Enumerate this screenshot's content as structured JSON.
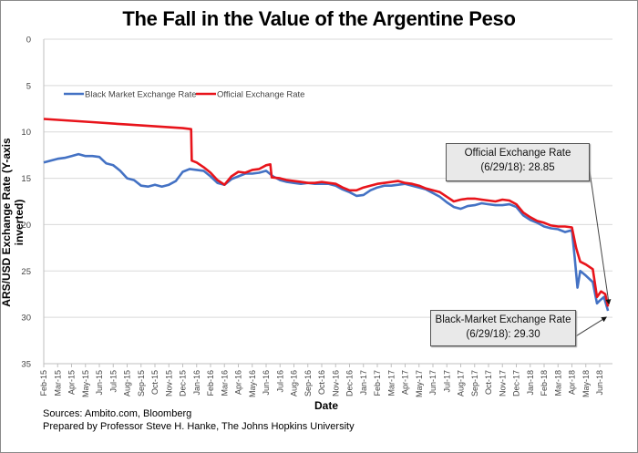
{
  "chart_data": {
    "type": "line",
    "title": "The Fall in the Value of the Argentine Peso",
    "xlabel": "Date",
    "ylabel": "ARS/USD Exchange  Rate (Y-axis inverted)",
    "ylim": [
      0,
      35
    ],
    "y_inverted": true,
    "yticks": [
      0,
      5,
      10,
      15,
      20,
      25,
      30,
      35
    ],
    "grid": true,
    "legend_position": "top-left",
    "x_ticks": [
      "Feb-15",
      "Mar-15",
      "Apr-15",
      "May-15",
      "Jun-15",
      "Jul-15",
      "Aug-15",
      "Sep-15",
      "Oct-15",
      "Nov-15",
      "Dec-15",
      "Jan-16",
      "Feb-16",
      "Mar-16",
      "Apr-16",
      "May-16",
      "Jun-16",
      "Jul-16",
      "Aug-16",
      "Sep-16",
      "Oct-16",
      "Nov-16",
      "Dec-16",
      "Jan-17",
      "Feb-17",
      "Mar-17",
      "Apr-17",
      "May-17",
      "Jun-17",
      "Jul-17",
      "Aug-17",
      "Sep-17",
      "Oct-17",
      "Nov-17",
      "Dec-17",
      "Jan-18",
      "Feb-18",
      "Mar-18",
      "Apr-18",
      "May-18",
      "Jun-18"
    ],
    "series": [
      {
        "name": "Black Market Exchange Rate",
        "color": "#4472c4",
        "points": [
          [
            0,
            13.3
          ],
          [
            0.5,
            13.1
          ],
          [
            1,
            12.9
          ],
          [
            1.5,
            12.8
          ],
          [
            2,
            12.6
          ],
          [
            2.5,
            12.4
          ],
          [
            3,
            12.6
          ],
          [
            3.5,
            12.6
          ],
          [
            4,
            12.7
          ],
          [
            4.5,
            13.4
          ],
          [
            5,
            13.6
          ],
          [
            5.5,
            14.2
          ],
          [
            6,
            15.0
          ],
          [
            6.5,
            15.2
          ],
          [
            7,
            15.8
          ],
          [
            7.5,
            15.9
          ],
          [
            8,
            15.7
          ],
          [
            8.5,
            15.9
          ],
          [
            9,
            15.7
          ],
          [
            9.5,
            15.3
          ],
          [
            10,
            14.3
          ],
          [
            10.5,
            14.0
          ],
          [
            11,
            14.1
          ],
          [
            11.5,
            14.2
          ],
          [
            12,
            14.8
          ],
          [
            12.5,
            15.5
          ],
          [
            13,
            15.7
          ],
          [
            13.5,
            15.1
          ],
          [
            14,
            14.8
          ],
          [
            14.5,
            14.5
          ],
          [
            15,
            14.5
          ],
          [
            15.5,
            14.4
          ],
          [
            16,
            14.2
          ],
          [
            16.5,
            14.8
          ],
          [
            17,
            15.2
          ],
          [
            17.5,
            15.4
          ],
          [
            18,
            15.5
          ],
          [
            18.5,
            15.6
          ],
          [
            19,
            15.5
          ],
          [
            19.5,
            15.6
          ],
          [
            20,
            15.6
          ],
          [
            20.5,
            15.6
          ],
          [
            21,
            15.8
          ],
          [
            21.5,
            16.2
          ],
          [
            22,
            16.5
          ],
          [
            22.5,
            16.9
          ],
          [
            23,
            16.8
          ],
          [
            23.5,
            16.3
          ],
          [
            24,
            16.0
          ],
          [
            24.5,
            15.8
          ],
          [
            25,
            15.8
          ],
          [
            25.5,
            15.7
          ],
          [
            26,
            15.6
          ],
          [
            26.5,
            15.8
          ],
          [
            27,
            16.0
          ],
          [
            27.5,
            16.2
          ],
          [
            28,
            16.6
          ],
          [
            28.5,
            17.0
          ],
          [
            29,
            17.6
          ],
          [
            29.5,
            18.1
          ],
          [
            30,
            18.3
          ],
          [
            30.5,
            18.0
          ],
          [
            31,
            17.9
          ],
          [
            31.5,
            17.7
          ],
          [
            32,
            17.8
          ],
          [
            32.5,
            17.9
          ],
          [
            33,
            17.9
          ],
          [
            33.5,
            17.8
          ],
          [
            34,
            18.1
          ],
          [
            34.5,
            19.0
          ],
          [
            35,
            19.5
          ],
          [
            35.5,
            19.8
          ],
          [
            36,
            20.2
          ],
          [
            36.5,
            20.4
          ],
          [
            37,
            20.5
          ],
          [
            37.5,
            20.8
          ],
          [
            38,
            20.6
          ],
          [
            38.2,
            23.5
          ],
          [
            38.4,
            26.8
          ],
          [
            38.6,
            25.0
          ],
          [
            39,
            25.5
          ],
          [
            39.5,
            26.2
          ],
          [
            39.8,
            28.5
          ],
          [
            40,
            28.2
          ],
          [
            40.3,
            27.8
          ],
          [
            40.6,
            29.3
          ]
        ]
      },
      {
        "name": "Official Exchange Rate",
        "color": "#e8141b",
        "points": [
          [
            0,
            8.6
          ],
          [
            1,
            8.7
          ],
          [
            2,
            8.8
          ],
          [
            3,
            8.9
          ],
          [
            4,
            9.0
          ],
          [
            5,
            9.1
          ],
          [
            6,
            9.2
          ],
          [
            7,
            9.3
          ],
          [
            8,
            9.4
          ],
          [
            9,
            9.5
          ],
          [
            10,
            9.6
          ],
          [
            10.6,
            9.7
          ],
          [
            10.65,
            13.1
          ],
          [
            11,
            13.3
          ],
          [
            11.5,
            13.8
          ],
          [
            12,
            14.4
          ],
          [
            12.5,
            15.2
          ],
          [
            13,
            15.7
          ],
          [
            13.5,
            14.8
          ],
          [
            14,
            14.3
          ],
          [
            14.5,
            14.4
          ],
          [
            15,
            14.1
          ],
          [
            15.5,
            14.0
          ],
          [
            16,
            13.6
          ],
          [
            16.3,
            13.5
          ],
          [
            16.4,
            14.9
          ],
          [
            17,
            15.0
          ],
          [
            17.5,
            15.2
          ],
          [
            18,
            15.3
          ],
          [
            18.5,
            15.4
          ],
          [
            19,
            15.5
          ],
          [
            19.5,
            15.5
          ],
          [
            20,
            15.4
          ],
          [
            20.5,
            15.5
          ],
          [
            21,
            15.6
          ],
          [
            21.5,
            16.0
          ],
          [
            22,
            16.3
          ],
          [
            22.5,
            16.3
          ],
          [
            23,
            16.0
          ],
          [
            23.5,
            15.8
          ],
          [
            24,
            15.6
          ],
          [
            24.5,
            15.5
          ],
          [
            25,
            15.4
          ],
          [
            25.5,
            15.3
          ],
          [
            26,
            15.5
          ],
          [
            26.5,
            15.6
          ],
          [
            27,
            15.8
          ],
          [
            27.5,
            16.1
          ],
          [
            28,
            16.3
          ],
          [
            28.5,
            16.5
          ],
          [
            29,
            17.0
          ],
          [
            29.5,
            17.5
          ],
          [
            30,
            17.3
          ],
          [
            30.5,
            17.2
          ],
          [
            31,
            17.2
          ],
          [
            31.5,
            17.3
          ],
          [
            32,
            17.4
          ],
          [
            32.5,
            17.5
          ],
          [
            33,
            17.3
          ],
          [
            33.5,
            17.4
          ],
          [
            34,
            17.8
          ],
          [
            34.5,
            18.7
          ],
          [
            35,
            19.2
          ],
          [
            35.5,
            19.6
          ],
          [
            36,
            19.8
          ],
          [
            36.5,
            20.1
          ],
          [
            37,
            20.2
          ],
          [
            37.5,
            20.2
          ],
          [
            38,
            20.3
          ],
          [
            38.3,
            22.5
          ],
          [
            38.6,
            24.0
          ],
          [
            39,
            24.3
          ],
          [
            39.5,
            24.8
          ],
          [
            39.8,
            27.8
          ],
          [
            40.1,
            27.2
          ],
          [
            40.4,
            27.5
          ],
          [
            40.6,
            28.85
          ]
        ]
      }
    ],
    "annotations": [
      {
        "line1": "Official Exchange Rate",
        "line2": "(6/29/18): 28.85",
        "target_x": 40.6,
        "target_y": 28.85
      },
      {
        "line1": "Black-Market Exchange Rate",
        "line2": "(6/29/18): 29.30",
        "target_x": 40.6,
        "target_y": 29.3
      }
    ]
  },
  "footer": {
    "sources": "Sources: Ambito.com, Bloomberg",
    "prepared_by": "Prepared by Professor Steve H. Hanke, The Johns Hopkins University"
  }
}
